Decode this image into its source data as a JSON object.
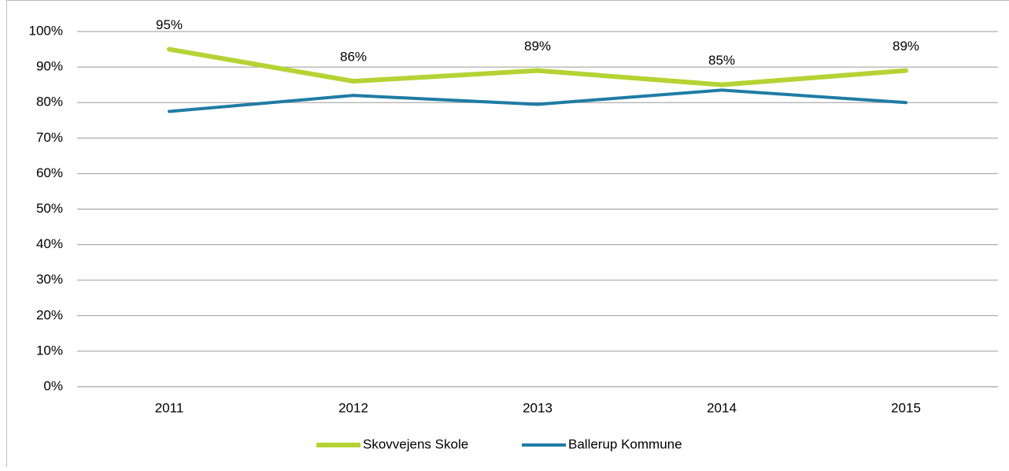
{
  "chart_data": {
    "type": "line",
    "categories": [
      "2011",
      "2012",
      "2013",
      "2014",
      "2015"
    ],
    "series": [
      {
        "name": "Skovvejens Skole",
        "color": "#b5d334",
        "values": [
          95,
          86,
          89,
          85,
          89
        ],
        "value_labels": [
          "95%",
          "86%",
          "89%",
          "85%",
          "89%"
        ]
      },
      {
        "name": "Ballerup Kommune",
        "color": "#1f7ca5",
        "values": [
          77.5,
          82,
          79.5,
          83.5,
          80
        ]
      }
    ],
    "ylim": [
      0,
      100
    ],
    "yticks": [
      {
        "value": 0,
        "label": "0%"
      },
      {
        "value": 10,
        "label": "10%"
      },
      {
        "value": 20,
        "label": "20%"
      },
      {
        "value": 30,
        "label": "30%"
      },
      {
        "value": 40,
        "label": "40%"
      },
      {
        "value": 50,
        "label": "50%"
      },
      {
        "value": 60,
        "label": "60%"
      },
      {
        "value": 70,
        "label": "70%"
      },
      {
        "value": 80,
        "label": "80%"
      },
      {
        "value": 90,
        "label": "90%"
      },
      {
        "value": 100,
        "label": "100%"
      }
    ],
    "grid": true,
    "legend": "bottom"
  }
}
